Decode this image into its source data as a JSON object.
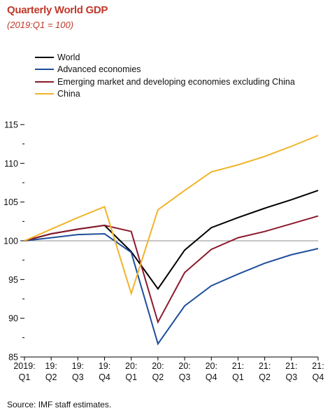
{
  "header": {
    "title": "Quarterly World GDP",
    "subtitle": "(2019:Q1 = 100)"
  },
  "footer": {
    "source": "Source: IMF staff estimates."
  },
  "colors": {
    "title": "#c0392b",
    "baseline": "#8c8c8c"
  },
  "chart_data": {
    "type": "line",
    "title": "Quarterly World GDP",
    "subtitle": "(2019:Q1 = 100)",
    "x_categories": [
      [
        "2019:",
        "Q1"
      ],
      [
        "19:",
        "Q2"
      ],
      [
        "19:",
        "Q3"
      ],
      [
        "19:",
        "Q4"
      ],
      [
        "20:",
        "Q1"
      ],
      [
        "20:",
        "Q2"
      ],
      [
        "20:",
        "Q3"
      ],
      [
        "20:",
        "Q4"
      ],
      [
        "21:",
        "Q1"
      ],
      [
        "21:",
        "Q2"
      ],
      [
        "21:",
        "Q3"
      ],
      [
        "21:",
        "Q4"
      ]
    ],
    "ylim": [
      85,
      115
    ],
    "yticks": [
      85,
      90,
      95,
      100,
      105,
      110,
      115
    ],
    "y_minor_step": 2.5,
    "grid": false,
    "reference_line": 100,
    "legend_position": "top-left",
    "series": [
      {
        "name": "World",
        "color": "#000000",
        "values": [
          100,
          100.9,
          101.5,
          102.0,
          98.6,
          93.8,
          98.8,
          101.7,
          103.0,
          104.2,
          105.3,
          106.5
        ]
      },
      {
        "name": "Advanced economies",
        "color": "#1f4e9c",
        "values": [
          100,
          100.4,
          100.8,
          100.9,
          98.5,
          86.7,
          91.6,
          94.2,
          95.7,
          97.1,
          98.2,
          99.0
        ]
      },
      {
        "name": "Emerging market and developing economies excluding China",
        "color": "#8b1a2b",
        "values": [
          100,
          100.9,
          101.5,
          102.0,
          101.2,
          89.5,
          95.9,
          98.9,
          100.4,
          101.2,
          102.2,
          103.2
        ]
      },
      {
        "name": "China",
        "color": "#f0b429",
        "values": [
          100,
          101.5,
          103.0,
          104.4,
          93.2,
          104.0,
          106.5,
          108.9,
          109.8,
          110.9,
          112.2,
          113.6
        ]
      }
    ]
  }
}
